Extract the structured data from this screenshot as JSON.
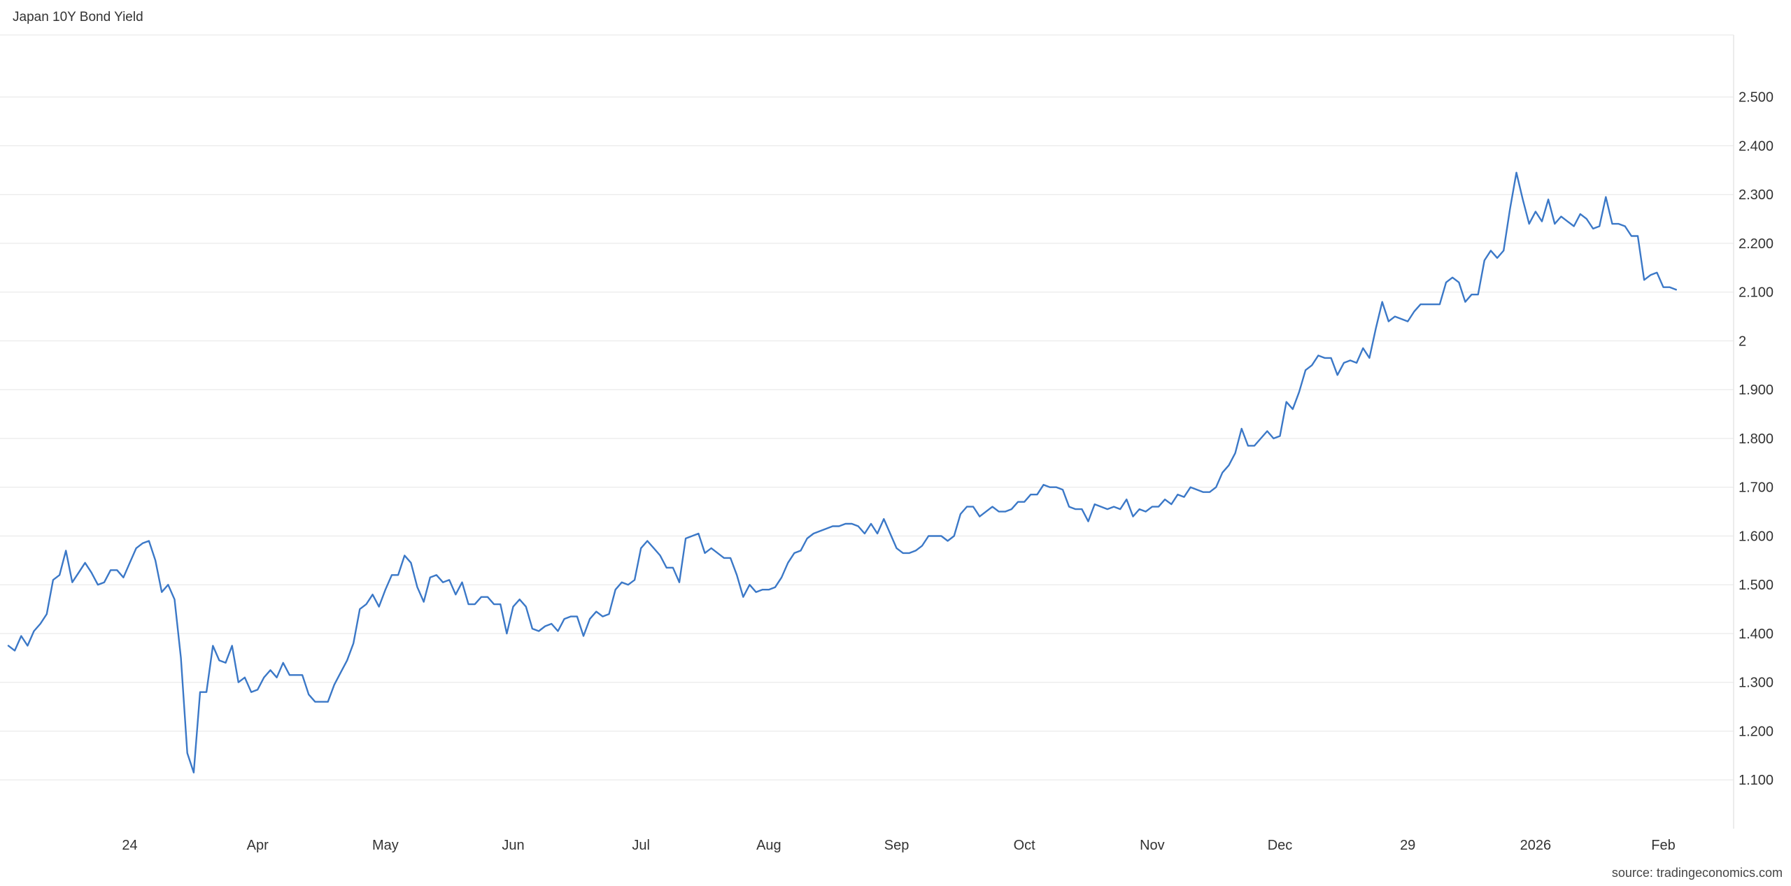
{
  "chart_data": {
    "type": "line",
    "title": "Japan 10Y Bond Yield",
    "source": "source: tradingeconomics.com",
    "line_color": "#3b78c7",
    "grid_color": "#e6e6e6",
    "grid": true,
    "y_axis_side": "right",
    "ylim": [
      1.0,
      2.62
    ],
    "xlim": [
      0,
      270
    ],
    "y_ticks": [
      {
        "value": 1.1,
        "label": "1.100"
      },
      {
        "value": 1.2,
        "label": "1.200"
      },
      {
        "value": 1.3,
        "label": "1.300"
      },
      {
        "value": 1.4,
        "label": "1.400"
      },
      {
        "value": 1.5,
        "label": "1.500"
      },
      {
        "value": 1.6,
        "label": "1.600"
      },
      {
        "value": 1.7,
        "label": "1.700"
      },
      {
        "value": 1.8,
        "label": "1.800"
      },
      {
        "value": 1.9,
        "label": "1.900"
      },
      {
        "value": 2.0,
        "label": "2"
      },
      {
        "value": 2.1,
        "label": "2.100"
      },
      {
        "value": 2.2,
        "label": "2.200"
      },
      {
        "value": 2.3,
        "label": "2.300"
      },
      {
        "value": 2.4,
        "label": "2.400"
      },
      {
        "value": 2.5,
        "label": "2.500"
      }
    ],
    "x_ticks": [
      {
        "value": 19,
        "label": "24"
      },
      {
        "value": 39,
        "label": "Apr"
      },
      {
        "value": 59,
        "label": "May"
      },
      {
        "value": 79,
        "label": "Jun"
      },
      {
        "value": 99,
        "label": "Jul"
      },
      {
        "value": 119,
        "label": "Aug"
      },
      {
        "value": 139,
        "label": "Sep"
      },
      {
        "value": 159,
        "label": "Oct"
      },
      {
        "value": 179,
        "label": "Nov"
      },
      {
        "value": 199,
        "label": "Dec"
      },
      {
        "value": 219,
        "label": "29"
      },
      {
        "value": 239,
        "label": "2026"
      },
      {
        "value": 259,
        "label": "Feb"
      }
    ],
    "series": [
      {
        "x": [
          0,
          1,
          2,
          3,
          4,
          5,
          6,
          7,
          8,
          9,
          10,
          11,
          12,
          13,
          14,
          15,
          16,
          17,
          18,
          19,
          20,
          21,
          22,
          23,
          24,
          25,
          26,
          27,
          28,
          29,
          30,
          31,
          32,
          33,
          34,
          35,
          36,
          37,
          38,
          39,
          40,
          41,
          42,
          43,
          44,
          45,
          46,
          47,
          48,
          49,
          50,
          51,
          52,
          53,
          54,
          55,
          56,
          57,
          58,
          59,
          60,
          61,
          62,
          63,
          64,
          65,
          66,
          67,
          68,
          69,
          70,
          71,
          72,
          73,
          74,
          75,
          76,
          77,
          78,
          79,
          80,
          81,
          82,
          83,
          84,
          85,
          86,
          87,
          88,
          89,
          90,
          91,
          92,
          93,
          94,
          95,
          96,
          97,
          98,
          99,
          100,
          101,
          102,
          103,
          104,
          105,
          106,
          107,
          108,
          109,
          110,
          111,
          112,
          113,
          114,
          115,
          116,
          117,
          118,
          119,
          120,
          121,
          122,
          123,
          124,
          125,
          126,
          127,
          128,
          129,
          130,
          131,
          132,
          133,
          134,
          135,
          136,
          137,
          138,
          139,
          140,
          141,
          142,
          143,
          144,
          145,
          146,
          147,
          148,
          149,
          150,
          151,
          152,
          153,
          154,
          155,
          156,
          157,
          158,
          159,
          160,
          161,
          162,
          163,
          164,
          165,
          166,
          167,
          168,
          169,
          170,
          171,
          172,
          173,
          174,
          175,
          176,
          177,
          178,
          179,
          180,
          181,
          182,
          183,
          184,
          185,
          186,
          187,
          188,
          189,
          190,
          191,
          192,
          193,
          194,
          195,
          196,
          197,
          198,
          199,
          200,
          201,
          202,
          203,
          204,
          205,
          206,
          207,
          208,
          209,
          210,
          211,
          212,
          213,
          214,
          215,
          216,
          217,
          218,
          219,
          220,
          221,
          222,
          223,
          224,
          225,
          226,
          227,
          228,
          229,
          230,
          231,
          232,
          233,
          234,
          235,
          236,
          237,
          238,
          239,
          240,
          241,
          242,
          243,
          244,
          245,
          246,
          247,
          248,
          249,
          250,
          251,
          252,
          253,
          254,
          255,
          256,
          257,
          258,
          259,
          260,
          261
        ],
        "values": [
          1.375,
          1.365,
          1.395,
          1.375,
          1.405,
          1.42,
          1.44,
          1.51,
          1.52,
          1.57,
          1.505,
          1.525,
          1.545,
          1.525,
          1.5,
          1.505,
          1.53,
          1.53,
          1.515,
          1.545,
          1.575,
          1.585,
          1.59,
          1.55,
          1.485,
          1.5,
          1.47,
          1.35,
          1.155,
          1.115,
          1.28,
          1.28,
          1.375,
          1.345,
          1.34,
          1.375,
          1.3,
          1.31,
          1.28,
          1.285,
          1.31,
          1.325,
          1.31,
          1.34,
          1.315,
          1.315,
          1.315,
          1.275,
          1.26,
          1.26,
          1.26,
          1.295,
          1.32,
          1.345,
          1.38,
          1.45,
          1.46,
          1.48,
          1.455,
          1.49,
          1.52,
          1.52,
          1.56,
          1.545,
          1.495,
          1.465,
          1.515,
          1.52,
          1.505,
          1.51,
          1.48,
          1.505,
          1.46,
          1.46,
          1.475,
          1.475,
          1.46,
          1.46,
          1.4,
          1.455,
          1.47,
          1.455,
          1.41,
          1.405,
          1.415,
          1.42,
          1.405,
          1.43,
          1.435,
          1.435,
          1.395,
          1.43,
          1.445,
          1.435,
          1.44,
          1.49,
          1.505,
          1.5,
          1.51,
          1.575,
          1.59,
          1.575,
          1.56,
          1.535,
          1.535,
          1.505,
          1.595,
          1.6,
          1.605,
          1.565,
          1.575,
          1.565,
          1.555,
          1.555,
          1.52,
          1.475,
          1.5,
          1.485,
          1.49,
          1.49,
          1.495,
          1.515,
          1.545,
          1.565,
          1.57,
          1.595,
          1.605,
          1.61,
          1.615,
          1.62,
          1.62,
          1.625,
          1.625,
          1.62,
          1.605,
          1.625,
          1.605,
          1.635,
          1.605,
          1.575,
          1.565,
          1.565,
          1.57,
          1.58,
          1.6,
          1.6,
          1.6,
          1.59,
          1.6,
          1.645,
          1.66,
          1.66,
          1.64,
          1.65,
          1.66,
          1.65,
          1.65,
          1.655,
          1.67,
          1.67,
          1.685,
          1.685,
          1.705,
          1.7,
          1.7,
          1.695,
          1.66,
          1.655,
          1.655,
          1.63,
          1.665,
          1.66,
          1.655,
          1.66,
          1.655,
          1.675,
          1.64,
          1.655,
          1.65,
          1.66,
          1.66,
          1.675,
          1.665,
          1.685,
          1.68,
          1.7,
          1.695,
          1.69,
          1.69,
          1.7,
          1.73,
          1.745,
          1.77,
          1.82,
          1.785,
          1.785,
          1.8,
          1.815,
          1.8,
          1.805,
          1.875,
          1.86,
          1.895,
          1.94,
          1.95,
          1.97,
          1.965,
          1.965,
          1.93,
          1.955,
          1.96,
          1.955,
          1.985,
          1.965,
          2.025,
          2.08,
          2.04,
          2.05,
          2.045,
          2.04,
          2.06,
          2.075,
          2.075,
          2.075,
          2.075,
          2.12,
          2.13,
          2.12,
          2.08,
          2.095,
          2.095,
          2.165,
          2.185,
          2.17,
          2.185,
          2.27,
          2.345,
          2.29,
          2.24,
          2.265,
          2.245,
          2.29,
          2.24,
          2.255,
          2.245,
          2.235,
          2.26,
          2.25,
          2.23,
          2.235,
          2.295,
          2.24,
          2.24,
          2.235,
          2.215,
          2.215,
          2.125,
          2.135,
          2.14,
          2.11,
          2.11,
          2.105
        ]
      }
    ]
  }
}
